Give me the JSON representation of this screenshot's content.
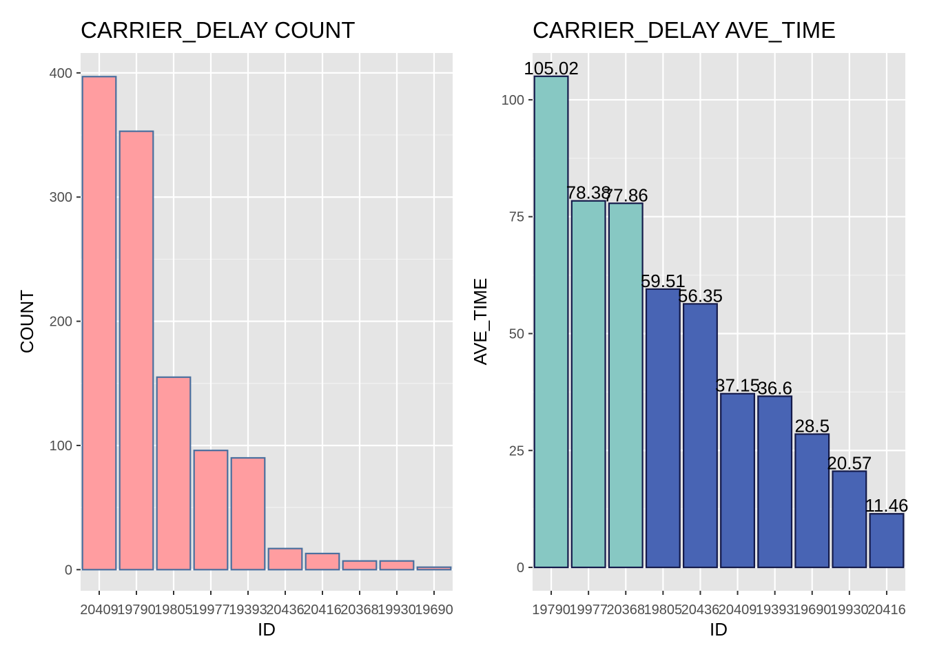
{
  "chart_data": [
    {
      "type": "bar",
      "title": "CARRIER_DELAY COUNT",
      "xlabel": "ID",
      "ylabel": "COUNT",
      "categories": [
        "20409",
        "19790",
        "19805",
        "19977",
        "19393",
        "20436",
        "20416",
        "20368",
        "19930",
        "19690"
      ],
      "values": [
        397,
        353,
        155,
        96,
        90,
        17,
        13,
        7,
        7,
        2
      ],
      "ylim": [
        -17,
        416
      ],
      "yticks": [
        0,
        100,
        200,
        300,
        400
      ],
      "grid": true,
      "fill_color": "#ff9da0",
      "edge_color": "#4a6f9e",
      "panel_color": "#e5e5e5"
    },
    {
      "type": "bar",
      "title": "CARRIER_DELAY AVE_TIME",
      "xlabel": "ID",
      "ylabel": "AVE_TIME",
      "categories": [
        "19790",
        "19977",
        "20368",
        "19805",
        "20436",
        "20409",
        "19393",
        "19690",
        "19930",
        "20416"
      ],
      "values": [
        105.02,
        78.38,
        77.86,
        59.51,
        56.35,
        37.15,
        36.6,
        28.5,
        20.57,
        11.46
      ],
      "data_labels": [
        "105.02",
        "78.38",
        "77.86",
        "59.51",
        "56.35",
        "37.15",
        "36.6",
        "28.5",
        "20.57",
        "11.46"
      ],
      "ylim": [
        -5,
        110
      ],
      "yticks": [
        0,
        25,
        50,
        75,
        100
      ],
      "grid": true,
      "highlight_color": "#87c8c3",
      "fill_color": "#4864b4",
      "edge_color": "#141a4a",
      "highlight_count": 3,
      "panel_color": "#e5e5e5"
    }
  ]
}
